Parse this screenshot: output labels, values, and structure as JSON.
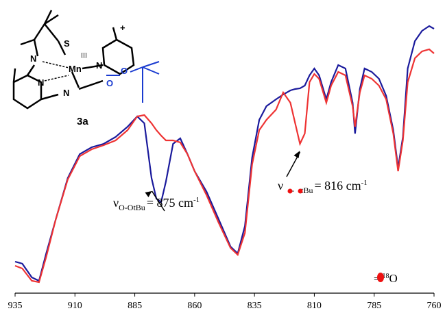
{
  "chart_data": {
    "type": "line",
    "x": [
      935,
      932,
      928,
      925,
      922,
      918,
      913,
      908,
      903,
      898,
      893,
      888,
      884,
      881,
      878,
      876,
      874,
      872,
      869,
      866,
      863,
      860,
      855,
      850,
      845,
      842,
      839,
      836,
      833,
      830,
      826,
      823,
      820,
      818,
      816,
      814,
      812,
      810,
      808,
      805,
      803,
      800,
      797,
      794,
      793,
      791,
      789,
      786,
      783,
      780,
      777,
      775,
      773,
      771,
      768,
      765,
      762,
      760
    ],
    "series": [
      {
        "name": "O-OtBu",
        "color": "#1a1a9c",
        "values": [
          9.5,
          8.75,
          3.75,
          2.5,
          12.5,
          25,
          40,
          48.75,
          51.25,
          52.5,
          55,
          58.75,
          62.5,
          60,
          40,
          32.5,
          31.25,
          38.75,
          52.5,
          54.5,
          48.75,
          42.5,
          35,
          25,
          15,
          12.5,
          22.5,
          47.5,
          61.25,
          66.25,
          68.75,
          70.5,
          72,
          72.5,
          72.75,
          73.75,
          77.5,
          80,
          77.5,
          68.75,
          75,
          81.25,
          80,
          67.5,
          56.25,
          72.5,
          80,
          78.75,
          76.25,
          70,
          57.5,
          43.75,
          55,
          80,
          90,
          93.75,
          95.5,
          94.5
        ]
      },
      {
        "name": "18O",
        "color": "#ee3333",
        "values": [
          8,
          7,
          2.5,
          2,
          11.25,
          25,
          39.5,
          48,
          50.5,
          52,
          53.75,
          57.5,
          62.5,
          63,
          60,
          57.5,
          55.5,
          53.75,
          53.75,
          53,
          48.75,
          42.5,
          33.75,
          23.75,
          14.5,
          12,
          20,
          45,
          57.5,
          61.25,
          65,
          71.25,
          67.5,
          60,
          52.5,
          56.25,
          75,
          78,
          76.25,
          67.5,
          73.75,
          78.75,
          77.5,
          66.25,
          58.75,
          71.25,
          77.5,
          76.25,
          73.75,
          68.75,
          56.25,
          42.5,
          53.75,
          75,
          83.75,
          86.25,
          87,
          85.5
        ]
      }
    ],
    "xlim": [
      935,
      760
    ],
    "xticks": [
      935,
      910,
      885,
      860,
      835,
      810,
      785,
      760
    ],
    "ylim": [
      0,
      100
    ],
    "annotations": [
      {
        "symbol": "ν",
        "sub": "O-OtBu",
        "text": "= 875 cm",
        "sup": "-1",
        "x": 875
      },
      {
        "symbol": "ν",
        "sub": "-",
        "sub2": "tBu",
        "text": "= 816 cm",
        "sup": "-1",
        "x": 816
      }
    ],
    "legend": {
      "eq": "=",
      "sup": "18",
      "text": "O",
      "color": "#ee1111"
    },
    "structure": {
      "charge": "+",
      "S": "S",
      "Mn": "Mn",
      "ox": "III",
      "N1": "N",
      "N2": "N",
      "N3": "N",
      "N4": "N",
      "O1": "O",
      "O2": "O",
      "label": "3a"
    }
  }
}
